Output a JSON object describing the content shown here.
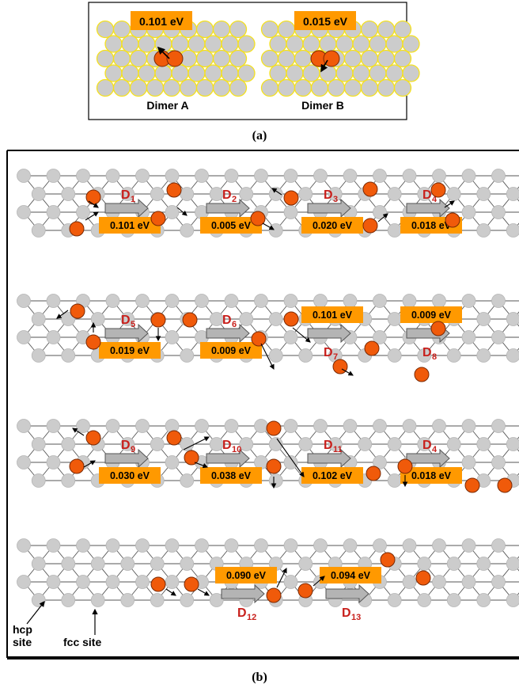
{
  "panel_a": {
    "caption": "(a)",
    "dimers": [
      {
        "name": "Dimer A",
        "energy": "0.101 eV"
      },
      {
        "name": "Dimer B",
        "energy": "0.015 eV"
      }
    ]
  },
  "panel_b": {
    "caption": "(b)",
    "rows": [
      {
        "steps": [
          {
            "label": "D",
            "sub": "1",
            "energy": "0.101 eV"
          },
          {
            "label": "D",
            "sub": "2",
            "energy": "0.005 eV"
          },
          {
            "label": "D",
            "sub": "3",
            "energy": "0.020 eV"
          },
          {
            "label": "D",
            "sub": "4",
            "energy": "0.018 eV"
          }
        ]
      },
      {
        "steps": [
          {
            "label": "D",
            "sub": "5",
            "energy": "0.019 eV"
          },
          {
            "label": "D",
            "sub": "6",
            "energy": "0.009 eV"
          },
          {
            "label": "D",
            "sub": "7",
            "energy": "0.101 eV"
          },
          {
            "label": "D",
            "sub": "8",
            "energy": "0.009 eV"
          }
        ]
      },
      {
        "steps": [
          {
            "label": "D",
            "sub": "9",
            "energy": "0.030 eV"
          },
          {
            "label": "D",
            "sub": "10",
            "energy": "0.038 eV"
          },
          {
            "label": "D",
            "sub": "11",
            "energy": "0.102 eV"
          },
          {
            "label": "D",
            "sub": "4",
            "energy": "0.018 eV"
          }
        ]
      },
      {
        "steps": [
          {
            "label": "D",
            "sub": "12",
            "energy": "0.090 eV"
          },
          {
            "label": "D",
            "sub": "13",
            "energy": "0.094 eV"
          }
        ]
      }
    ],
    "site_labels": {
      "hcp_1": "hcp",
      "hcp_2": "site",
      "fcc": "fcc site"
    }
  },
  "colors": {
    "adatom": "#f05a0a",
    "substrate": "#cccccc",
    "energy_box": "#ff9900",
    "label_red": "#c8201c",
    "arrow_fill": "#b4b4b4",
    "lattice_line": "#555555"
  }
}
